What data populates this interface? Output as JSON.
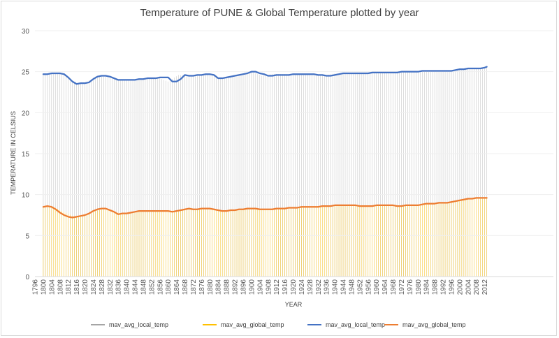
{
  "chart_data": {
    "type": "line",
    "title": "Temperature of PUNE & Global Temperature plotted by year",
    "xlabel": "YEAR",
    "ylabel": "TEMPERATURE IN CELSIUS",
    "ylim": [
      0,
      30
    ],
    "yticks": [
      0,
      5,
      10,
      15,
      20,
      25,
      30
    ],
    "xlim": [
      1796,
      2045
    ],
    "x_tick_labels": [
      "1796",
      "1800",
      "1804",
      "1808",
      "1812",
      "1816",
      "1820",
      "1824",
      "1828",
      "1832",
      "1836",
      "1840",
      "1844",
      "1848",
      "1852",
      "1856",
      "1860",
      "1864",
      "1868",
      "1872",
      "1876",
      "1880",
      "1884",
      "1888",
      "1892",
      "1896",
      "1900",
      "1904",
      "1908",
      "1912",
      "1916",
      "1920",
      "1924",
      "1928",
      "1932",
      "1936",
      "1940",
      "1944",
      "1948",
      "1952",
      "1956",
      "1960",
      "1964",
      "1968",
      "1972",
      "1976",
      "1980",
      "1984",
      "1988",
      "1992",
      "1996",
      "2000",
      "2004",
      "2008",
      "2012"
    ],
    "legend": "bottom",
    "series": [
      {
        "name": "mav_avg_local_temp",
        "color": "#a5a5a5",
        "style": "columns",
        "x": [
          1805,
          1810,
          1815,
          1820,
          1825,
          1830,
          1835,
          1840,
          1845,
          1850,
          1855,
          1860,
          1865,
          1870,
          1875,
          1880,
          1885,
          1890,
          1895,
          1900,
          1905,
          1910,
          1915,
          1920,
          1925,
          1930,
          1935,
          1940,
          1945,
          1950,
          1955,
          1960,
          1965,
          1970,
          1975,
          1980,
          1985,
          1990,
          1995,
          2000,
          2005,
          2010,
          2013
        ],
        "values": [
          24.8,
          24.7,
          23.6,
          23.6,
          24.4,
          24.4,
          24.0,
          24.0,
          24.1,
          24.2,
          24.3,
          23.8,
          24.6,
          24.5,
          24.6,
          24.7,
          24.2,
          24.4,
          24.7,
          25.0,
          24.5,
          24.7,
          24.7,
          24.7,
          24.7,
          24.6,
          24.5,
          24.8,
          24.8,
          24.9,
          24.9,
          24.9,
          24.9,
          24.9,
          25.0,
          25.1,
          25.1,
          25.1,
          25.1,
          25.3,
          25.4,
          25.4,
          25.6
        ]
      },
      {
        "name": "mav_avg_global_temp",
        "color": "#ffc000",
        "style": "columns",
        "x": [
          1805,
          1810,
          1815,
          1820,
          1825,
          1830,
          1835,
          1840,
          1845,
          1850,
          1855,
          1860,
          1865,
          1870,
          1875,
          1880,
          1885,
          1890,
          1895,
          1900,
          1905,
          1910,
          1915,
          1920,
          1925,
          1930,
          1935,
          1940,
          1945,
          1950,
          1955,
          1960,
          1965,
          1970,
          1975,
          1980,
          1985,
          1990,
          1995,
          2000,
          2005,
          2010,
          2013
        ],
        "values": [
          8.5,
          7.9,
          7.3,
          7.5,
          8.0,
          8.3,
          7.8,
          7.7,
          8.0,
          8.0,
          8.0,
          8.0,
          8.1,
          8.3,
          8.2,
          8.3,
          8.0,
          8.0,
          8.1,
          8.3,
          8.2,
          8.2,
          8.3,
          8.3,
          8.5,
          8.6,
          8.6,
          8.7,
          8.7,
          8.7,
          8.7,
          8.7,
          8.7,
          8.7,
          8.7,
          8.8,
          8.9,
          9.0,
          9.1,
          9.3,
          9.5,
          9.6,
          9.6
        ]
      },
      {
        "name": "mav_avg_local_temp",
        "color": "#4472c4",
        "style": "line",
        "x": [
          1800,
          1802,
          1804,
          1806,
          1808,
          1810,
          1812,
          1814,
          1816,
          1818,
          1820,
          1822,
          1824,
          1826,
          1828,
          1830,
          1832,
          1834,
          1836,
          1838,
          1840,
          1842,
          1844,
          1846,
          1848,
          1850,
          1852,
          1854,
          1856,
          1858,
          1860,
          1862,
          1864,
          1866,
          1868,
          1870,
          1872,
          1874,
          1876,
          1878,
          1880,
          1882,
          1884,
          1886,
          1888,
          1890,
          1892,
          1894,
          1896,
          1898,
          1900,
          1902,
          1904,
          1906,
          1908,
          1910,
          1912,
          1914,
          1916,
          1918,
          1920,
          1922,
          1924,
          1926,
          1928,
          1930,
          1932,
          1934,
          1936,
          1938,
          1940,
          1942,
          1944,
          1946,
          1948,
          1950,
          1952,
          1954,
          1956,
          1958,
          1960,
          1962,
          1964,
          1966,
          1968,
          1970,
          1972,
          1974,
          1976,
          1978,
          1980,
          1982,
          1984,
          1986,
          1988,
          1990,
          1992,
          1994,
          1996,
          1998,
          2000,
          2002,
          2004,
          2006,
          2008,
          2010,
          2012,
          2013
        ],
        "values": [
          24.7,
          24.7,
          24.8,
          24.8,
          24.8,
          24.7,
          24.3,
          23.8,
          23.5,
          23.6,
          23.6,
          23.7,
          24.1,
          24.4,
          24.5,
          24.5,
          24.4,
          24.2,
          24.0,
          24.0,
          24.0,
          24.0,
          24.0,
          24.1,
          24.1,
          24.2,
          24.2,
          24.2,
          24.3,
          24.3,
          24.3,
          23.8,
          23.8,
          24.1,
          24.6,
          24.5,
          24.5,
          24.6,
          24.6,
          24.7,
          24.7,
          24.6,
          24.2,
          24.2,
          24.3,
          24.4,
          24.5,
          24.6,
          24.7,
          24.8,
          25.0,
          25.0,
          24.8,
          24.7,
          24.5,
          24.5,
          24.6,
          24.6,
          24.6,
          24.6,
          24.7,
          24.7,
          24.7,
          24.7,
          24.7,
          24.7,
          24.6,
          24.6,
          24.5,
          24.5,
          24.6,
          24.7,
          24.8,
          24.8,
          24.8,
          24.8,
          24.8,
          24.8,
          24.8,
          24.9,
          24.9,
          24.9,
          24.9,
          24.9,
          24.9,
          24.9,
          25.0,
          25.0,
          25.0,
          25.0,
          25.0,
          25.1,
          25.1,
          25.1,
          25.1,
          25.1,
          25.1,
          25.1,
          25.1,
          25.2,
          25.3,
          25.3,
          25.4,
          25.4,
          25.4,
          25.4,
          25.5,
          25.6
        ]
      },
      {
        "name": "mav_avg_global_temp",
        "color": "#ed7d31",
        "style": "line",
        "x": [
          1800,
          1802,
          1804,
          1806,
          1808,
          1810,
          1812,
          1814,
          1816,
          1818,
          1820,
          1822,
          1824,
          1826,
          1828,
          1830,
          1832,
          1834,
          1836,
          1838,
          1840,
          1842,
          1844,
          1846,
          1848,
          1850,
          1852,
          1854,
          1856,
          1858,
          1860,
          1862,
          1864,
          1866,
          1868,
          1870,
          1872,
          1874,
          1876,
          1878,
          1880,
          1882,
          1884,
          1886,
          1888,
          1890,
          1892,
          1894,
          1896,
          1898,
          1900,
          1902,
          1904,
          1906,
          1908,
          1910,
          1912,
          1914,
          1916,
          1918,
          1920,
          1922,
          1924,
          1926,
          1928,
          1930,
          1932,
          1934,
          1936,
          1938,
          1940,
          1942,
          1944,
          1946,
          1948,
          1950,
          1952,
          1954,
          1956,
          1958,
          1960,
          1962,
          1964,
          1966,
          1968,
          1970,
          1972,
          1974,
          1976,
          1978,
          1980,
          1982,
          1984,
          1986,
          1988,
          1990,
          1992,
          1994,
          1996,
          1998,
          2000,
          2002,
          2004,
          2006,
          2008,
          2010,
          2012,
          2013
        ],
        "values": [
          8.5,
          8.6,
          8.5,
          8.2,
          7.8,
          7.5,
          7.3,
          7.2,
          7.3,
          7.4,
          7.5,
          7.7,
          8.0,
          8.2,
          8.3,
          8.3,
          8.1,
          7.9,
          7.6,
          7.7,
          7.7,
          7.8,
          7.9,
          8.0,
          8.0,
          8.0,
          8.0,
          8.0,
          8.0,
          8.0,
          8.0,
          7.9,
          8.0,
          8.1,
          8.2,
          8.3,
          8.2,
          8.2,
          8.3,
          8.3,
          8.3,
          8.2,
          8.1,
          8.0,
          8.0,
          8.1,
          8.1,
          8.2,
          8.2,
          8.3,
          8.3,
          8.3,
          8.2,
          8.2,
          8.2,
          8.2,
          8.3,
          8.3,
          8.3,
          8.4,
          8.4,
          8.4,
          8.5,
          8.5,
          8.5,
          8.5,
          8.5,
          8.6,
          8.6,
          8.6,
          8.7,
          8.7,
          8.7,
          8.7,
          8.7,
          8.7,
          8.6,
          8.6,
          8.6,
          8.6,
          8.7,
          8.7,
          8.7,
          8.7,
          8.7,
          8.6,
          8.6,
          8.7,
          8.7,
          8.7,
          8.7,
          8.8,
          8.9,
          8.9,
          8.9,
          9.0,
          9.0,
          9.0,
          9.1,
          9.2,
          9.3,
          9.4,
          9.5,
          9.5,
          9.6,
          9.6,
          9.6,
          9.6
        ]
      }
    ]
  }
}
